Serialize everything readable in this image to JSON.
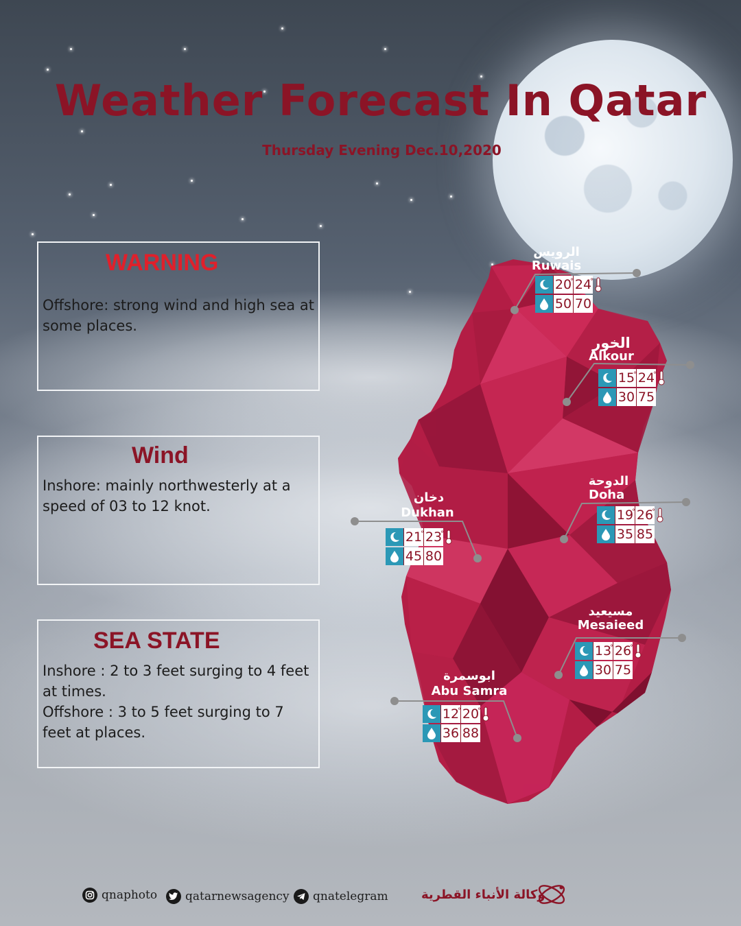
{
  "header": {
    "title": "Weather Forecast In Qatar",
    "subtitle": "Thursday Evening Dec.10,2020"
  },
  "panels": {
    "warning": {
      "title": "WARNING",
      "text": "Offshore:  strong wind and high sea at some places."
    },
    "wind": {
      "title": "Wind",
      "text": "Inshore:  mainly northwesterly at a speed of 03 to 12 knot."
    },
    "sea_state": {
      "title": "SEA STATE",
      "line1": "Inshore :  2 to 3 feet surging to 4 feet at times.",
      "line2": "Offshore : 3 to 5 feet surging to 7 feet at places."
    }
  },
  "cities": [
    {
      "name_ar": "الرويس",
      "name_en": "Ruwais",
      "temp_min": "20",
      "temp_max": "24",
      "hum_min": "50",
      "hum_max": "70"
    },
    {
      "name_ar": "الخور",
      "name_en": "Alkour",
      "temp_min": "15",
      "temp_max": "24",
      "hum_min": "30",
      "hum_max": "75"
    },
    {
      "name_ar": "الدوحة",
      "name_en": "Doha",
      "temp_min": "19",
      "temp_max": "26",
      "hum_min": "35",
      "hum_max": "85"
    },
    {
      "name_ar": "دخان",
      "name_en": "Dukhan",
      "temp_min": "21",
      "temp_max": "23",
      "hum_min": "45",
      "hum_max": "80"
    },
    {
      "name_ar": "مسيعيد",
      "name_en": "Mesaieed",
      "temp_min": "13",
      "temp_max": "26",
      "hum_min": "30",
      "hum_max": "75"
    },
    {
      "name_ar": "ابوسمرة",
      "name_en": "Abu Samra",
      "temp_min": "12",
      "temp_max": "20",
      "hum_min": "36",
      "hum_max": "88"
    }
  ],
  "footer": {
    "instagram": "qnaphoto",
    "twitter": "qatarnewsagency",
    "telegram": "qnatelegram",
    "agency_name_ar": "وكالة الأنباء القطرية"
  },
  "icons": {
    "night": "crescent-moon-icon",
    "humidity": "water-drop-icon",
    "temperature": "thermometer-icon"
  },
  "colors": {
    "brand_maroon": "#8b1426",
    "map_fill": "#b31d45",
    "warning_red": "#e0202b",
    "icon_teal": "#2b98b6"
  }
}
